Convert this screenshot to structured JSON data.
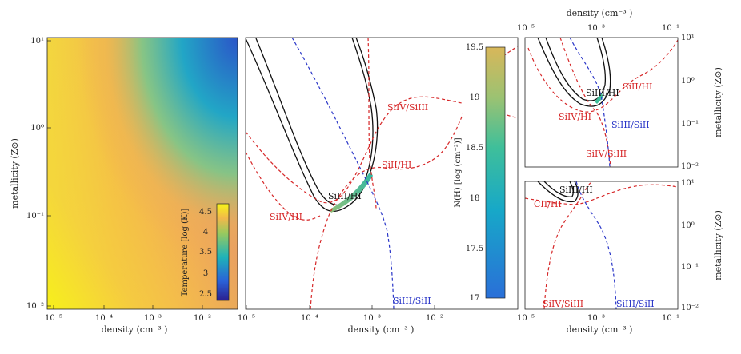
{
  "chart_data": [
    {
      "type": "heatmap",
      "panel": "temperature map",
      "xlabel": "density (cm⁻³ )",
      "ylabel": "metallicity (Z⊙)",
      "x_ticks": [
        "10⁻⁵",
        "10⁻⁴",
        "10⁻³",
        "10⁻²"
      ],
      "y_ticks": [
        "10¹",
        "10⁰",
        "10⁻¹",
        "10⁻²"
      ],
      "xlim": [
        -5,
        -1.3
      ],
      "ylim": [
        -2,
        1
      ],
      "colorbar": {
        "label": "Temperature [log (K)]",
        "ticks": [
          "4.5",
          "4",
          "3.5",
          "3",
          "2.5"
        ],
        "range": [
          2.3,
          4.7
        ]
      }
    },
    {
      "type": "line",
      "panel": "N(H) contours",
      "xlabel": "density (cm⁻³ )",
      "x_ticks": [
        "10⁻⁵",
        "10⁻⁴",
        "10⁻³",
        "10⁻²"
      ],
      "xlim": [
        -5,
        -1.3
      ],
      "colorbar": {
        "label": "N(H) [log (cm⁻²)]",
        "ticks": [
          "19.5",
          "19",
          "18.5",
          "18",
          "17.5",
          "17"
        ],
        "range": [
          17,
          19.5
        ]
      },
      "curve_labels": {
        "siiv_siiii": "SiIV/SiIII",
        "siii_hi": "SiII/HI",
        "siiii_hi": "SiIII/HI",
        "siiv_hi": "SiIV/HI",
        "siiii_siii": "SiIII/SiII"
      }
    },
    {
      "type": "line",
      "panel": "top right",
      "xlabel": "density (cm⁻³ )",
      "ylabel": "metallicity (Z⊙)",
      "x_ticks": [
        "10⁻⁵",
        "10⁻³",
        "10⁻¹"
      ],
      "y_ticks": [
        "10¹",
        "10⁰",
        "10⁻¹",
        "10⁻²"
      ],
      "xlim": [
        -5,
        -1
      ],
      "ylim": [
        -2,
        1
      ],
      "curve_labels": {
        "siii_hi": "SiII/HI",
        "siiii_hi": "SiIII/HI",
        "siiv_hi": "SiIV/HI",
        "siiii_siii": "SiIII/SiII",
        "siiv_siiii": "SiIV/SiIII"
      }
    },
    {
      "type": "line",
      "panel": "bottom right",
      "xlabel": "density (cm⁻³ )",
      "ylabel": "metallicity (Z⊙)",
      "x_ticks": [
        "10⁻⁵",
        "10⁻³",
        "10⁻¹"
      ],
      "y_ticks": [
        "10¹",
        "10⁰",
        "10⁻¹",
        "10⁻²"
      ],
      "xlim": [
        -5,
        -1
      ],
      "ylim": [
        -2,
        1
      ],
      "curve_labels": {
        "siiii_hi": "SiIII/HI",
        "cii_hi": "CII/HI",
        "siiv_siiii": "SiIV/SiIII",
        "siiii_siii": "SiIII/SiII"
      }
    }
  ]
}
